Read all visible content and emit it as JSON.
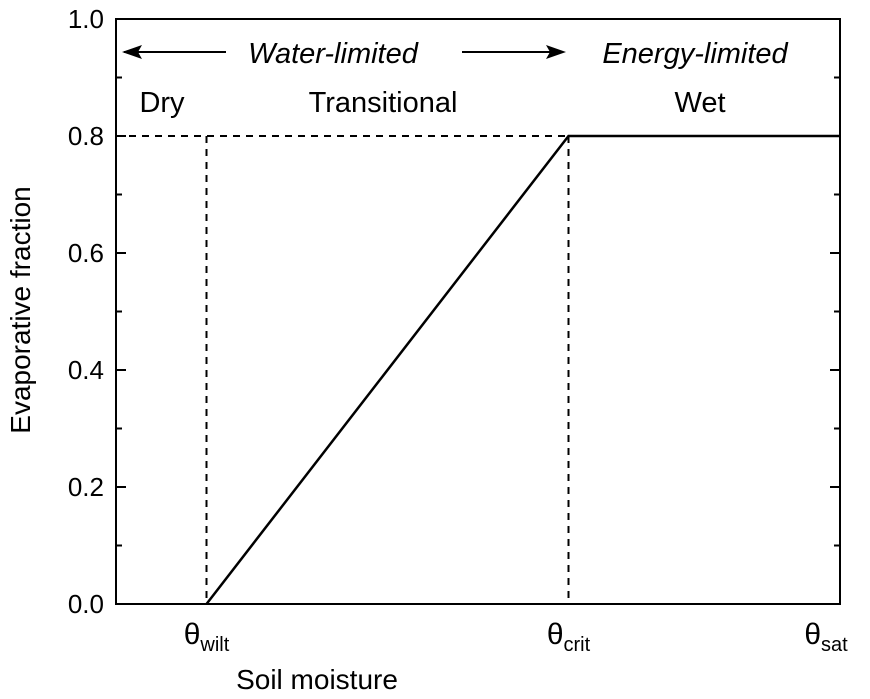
{
  "chart_data": {
    "type": "line",
    "title": "",
    "xlabel": "Soil moisture",
    "ylabel": "Evaporative fraction",
    "ylim": [
      0,
      1.0
    ],
    "xlim": [
      0,
      1.0
    ],
    "y_ticks": [
      "0.0",
      "0.2",
      "0.4",
      "0.6",
      "0.8",
      "1.0"
    ],
    "y_tick_values": [
      0,
      0.2,
      0.4,
      0.6,
      0.8,
      1.0
    ],
    "x_ticks": [
      {
        "symbol": "θ",
        "subscript": "wilt",
        "value": 0.125
      },
      {
        "symbol": "θ",
        "subscript": "crit",
        "value": 0.625
      },
      {
        "symbol": "θ",
        "subscript": "sat",
        "value": 1.0
      }
    ],
    "series": [
      {
        "x": [
          0.125,
          0.625,
          1.0
        ],
        "y": [
          0.0,
          0.8,
          0.8
        ]
      }
    ],
    "reference_lines": {
      "horizontal_y": 0.8,
      "vertical_x": [
        0.125,
        0.625
      ]
    },
    "regions": [
      "Dry",
      "Transitional",
      "Wet"
    ],
    "regimes": {
      "left": "Water-limited",
      "right": "Energy-limited"
    },
    "grid": false,
    "colors": {
      "line": "#000000",
      "axis": "#000000"
    }
  }
}
